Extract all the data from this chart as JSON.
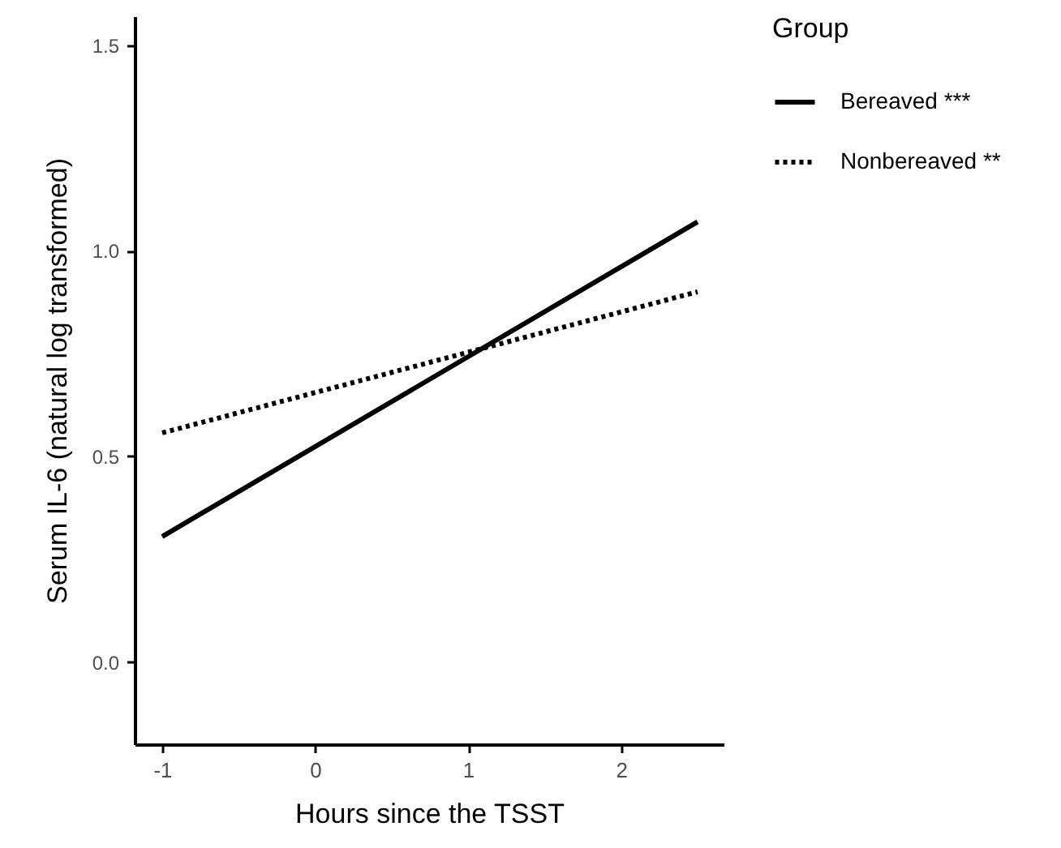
{
  "chart_data": {
    "type": "line",
    "xlabel": "Hours since the TSST",
    "ylabel": "Serum IL-6 (natural log transformed)",
    "legend_title": "Group",
    "legend": "right",
    "grid": false,
    "marker": "none",
    "xlim": [
      -1.18,
      2.67
    ],
    "xticks": [
      -1,
      0,
      1,
      2
    ],
    "ylim": [
      -0.2,
      1.57
    ],
    "yticks": [
      {
        "value": 0,
        "label": "0.0"
      },
      {
        "value": 0.5,
        "label": "0.5"
      },
      {
        "value": 1,
        "label": "1.0"
      },
      {
        "value": 1.5,
        "label": "1.5"
      }
    ],
    "x": [
      -1,
      2.5
    ],
    "series": [
      {
        "name": "Bereaved ***",
        "color": "#000000",
        "line_style": "solid",
        "values": [
          0.305,
          1.07
        ]
      },
      {
        "name": "Nonbereaved **",
        "color": "#000000",
        "line_style": "dotted",
        "values": [
          0.557,
          0.9
        ]
      }
    ]
  }
}
